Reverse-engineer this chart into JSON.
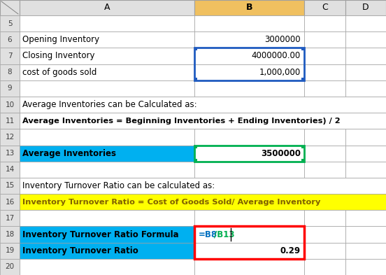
{
  "figsize": [
    5.52,
    3.93
  ],
  "dpi": 100,
  "bg_color": "#ffffff",
  "header_bg": "#e0e0e0",
  "col_b_header_bg": "#f0c060",
  "cyan_bg": "#00b0f0",
  "yellow_bg": "#ffff00",
  "white_bg": "#ffffff",
  "rows": {
    "5": {
      "a": "",
      "b": "",
      "type": "normal"
    },
    "6": {
      "a": "Opening Inventory",
      "b": "3000000",
      "type": "normal"
    },
    "7": {
      "a": "Closing Inventory",
      "b": "4000000.00",
      "type": "normal"
    },
    "8": {
      "a": "cost of goods sold",
      "b": "1,000,000",
      "type": "normal"
    },
    "9": {
      "a": "",
      "b": "",
      "type": "normal"
    },
    "10": {
      "a": "Average Inventories can be Calculated as:",
      "b": "",
      "type": "span"
    },
    "11": {
      "a": "Average Inventories = Beginning Inventories + Ending Inventories) / 2",
      "b": "",
      "type": "span_bold"
    },
    "12": {
      "a": "",
      "b": "",
      "type": "normal"
    },
    "13": {
      "a": "Average Inventories",
      "b": "3500000",
      "type": "cyan"
    },
    "14": {
      "a": "",
      "b": "",
      "type": "normal"
    },
    "15": {
      "a": "Inventory Turnover Ratio can be calculated as:",
      "b": "",
      "type": "span"
    },
    "16": {
      "a": "Inventory Turnover Ratio = Cost of Goods Sold/ Average Inventory",
      "b": "",
      "type": "yellow"
    },
    "17": {
      "a": "",
      "b": "",
      "type": "normal"
    },
    "18": {
      "a": "Inventory Turnover Ratio Formula",
      "b": "=B8/B13",
      "type": "cyan"
    },
    "19": {
      "a": "Inventory Turnover Ratio",
      "b": "0.29",
      "type": "cyan"
    },
    "20": {
      "a": "",
      "b": "",
      "type": "normal"
    }
  },
  "row_order": [
    "5",
    "6",
    "7",
    "8",
    "9",
    "10",
    "11",
    "12",
    "13",
    "14",
    "15",
    "16",
    "17",
    "18",
    "19",
    "20"
  ],
  "blue_sel_row": "8",
  "green_sel_row": "13",
  "red_sel_rows": [
    "18",
    "19"
  ]
}
